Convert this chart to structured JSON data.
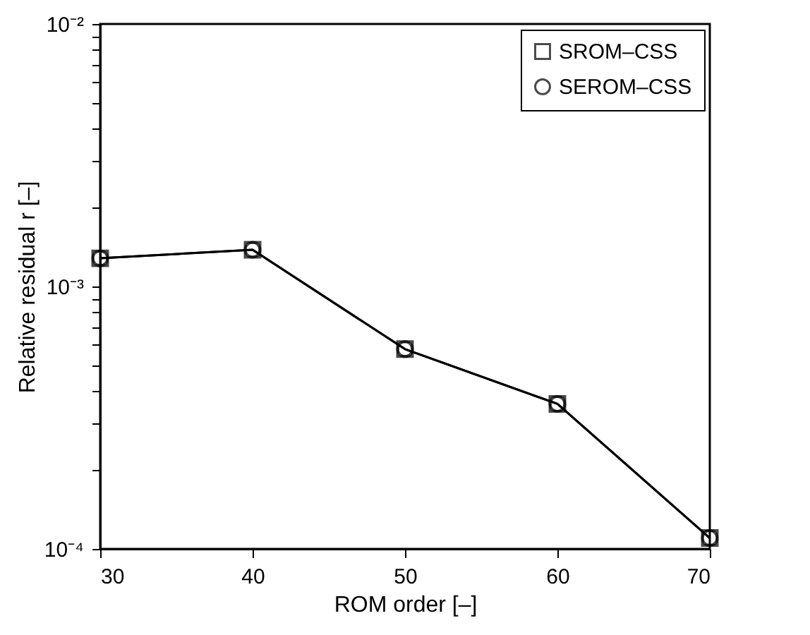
{
  "chart_data": {
    "type": "line",
    "xlabel": "ROM order [–]",
    "ylabel": "Relative residual r [–]",
    "x": [
      30,
      40,
      50,
      60,
      70
    ],
    "series": [
      {
        "name": "SROM–CSS",
        "color": "#000000",
        "marker": "square",
        "values": [
          0.00128,
          0.00138,
          0.000577,
          0.000357,
          0.00011
        ]
      },
      {
        "name": "SEROM–CSS",
        "color": "#000000",
        "marker": "circle",
        "values": [
          0.00128,
          0.00138,
          0.000577,
          0.000357,
          0.00011
        ]
      }
    ],
    "xlim": [
      30,
      70
    ],
    "xticks": [
      30,
      40,
      50,
      60,
      70
    ],
    "ylim": [
      0.0001,
      0.01
    ],
    "yticks": [
      {
        "value": 0.0001,
        "label": "10⁻⁴"
      },
      {
        "value": 0.0002,
        "label": null
      },
      {
        "value": 0.0003,
        "label": null
      },
      {
        "value": 0.0004,
        "label": null
      },
      {
        "value": 0.0005,
        "label": null
      },
      {
        "value": 0.0006,
        "label": null
      },
      {
        "value": 0.0007,
        "label": null
      },
      {
        "value": 0.0008,
        "label": null
      },
      {
        "value": 0.0009,
        "label": null
      },
      {
        "value": 0.001,
        "label": "10⁻³"
      },
      {
        "value": 0.002,
        "label": null
      },
      {
        "value": 0.003,
        "label": null
      },
      {
        "value": 0.004,
        "label": null
      },
      {
        "value": 0.005,
        "label": null
      },
      {
        "value": 0.006,
        "label": null
      },
      {
        "value": 0.007,
        "label": null
      },
      {
        "value": 0.008,
        "label": null
      },
      {
        "value": 0.009,
        "label": null
      },
      {
        "value": 0.01,
        "label": "10⁻²"
      }
    ],
    "log": "y",
    "grid": false,
    "legend": "top right",
    "line_style": "solid"
  }
}
